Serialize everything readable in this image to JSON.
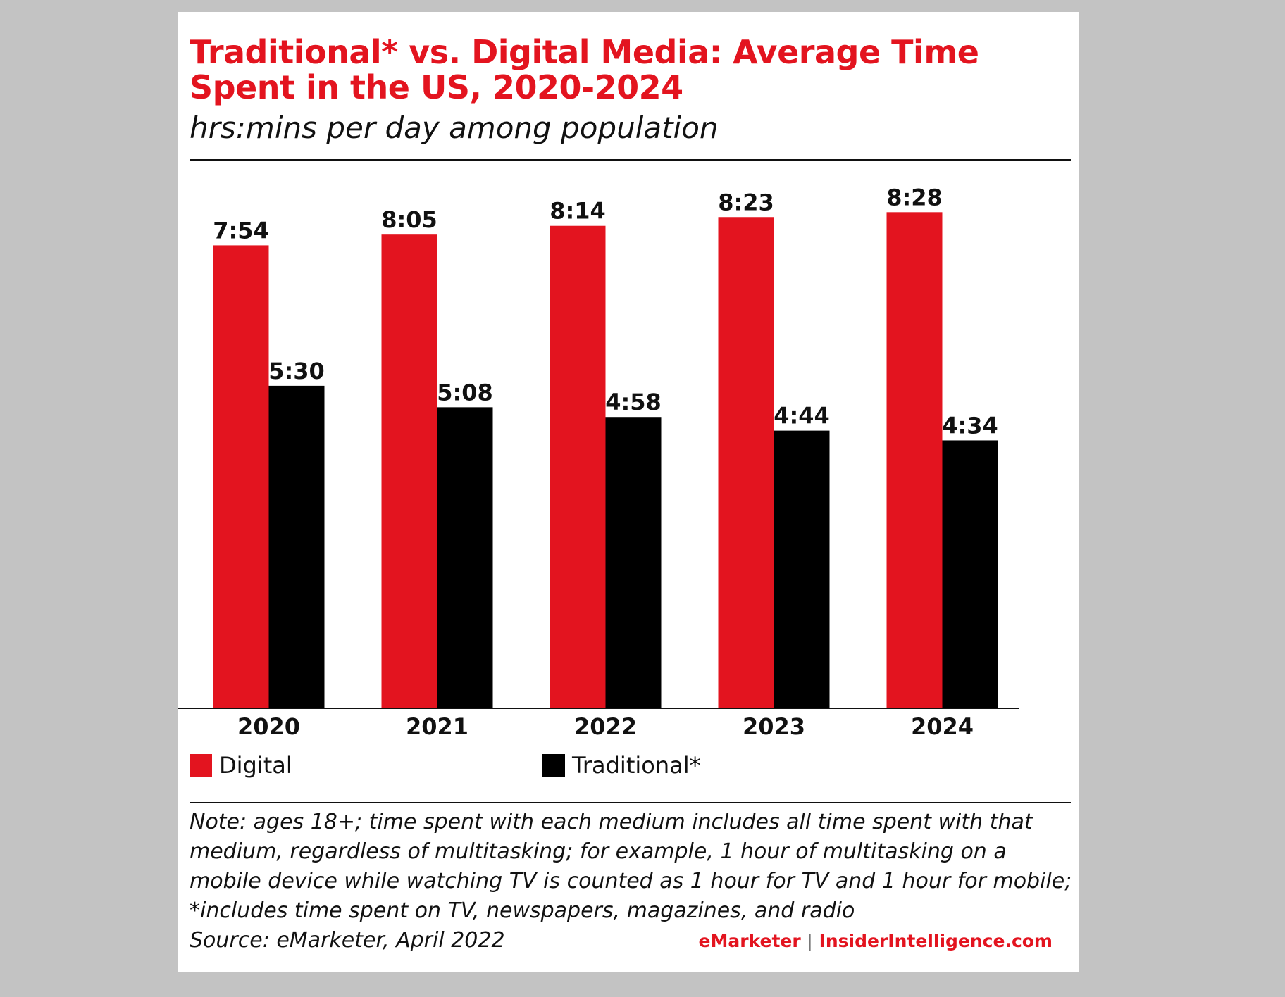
{
  "header": {
    "title": "Traditional* vs. Digital Media: Average Time Spent in the US, 2020-2024",
    "subtitle": "hrs:mins per day among population"
  },
  "footer": {
    "note": "Note: ages 18+; time spent with each medium includes all time spent with that medium, regardless of multitasking; for example, 1 hour of multitasking on a mobile device while watching TV is counted as 1 hour for TV and 1 hour for mobile; *includes time spent on TV, newspapers, magazines, and radio",
    "source": "Source: eMarketer, April 2022",
    "brand_primary": "eMarketer",
    "brand_separator": "|",
    "brand_secondary": "InsiderIntelligence.com"
  },
  "colors": {
    "digital": "#e3141f",
    "traditional": "#000000"
  },
  "chart_data": {
    "type": "bar",
    "title": "Traditional* vs. Digital Media: Average Time Spent in the US, 2020-2024",
    "subtitle": "hrs:mins per day among population",
    "categories": [
      "2020",
      "2021",
      "2022",
      "2023",
      "2024"
    ],
    "series": [
      {
        "name": "Digital",
        "values": [
          474,
          485,
          494,
          503,
          508
        ],
        "labels": [
          "7:54",
          "8:05",
          "8:14",
          "8:23",
          "8:28"
        ]
      },
      {
        "name": "Traditional*",
        "values": [
          330,
          308,
          298,
          284,
          274
        ],
        "labels": [
          "5:30",
          "5:08",
          "4:58",
          "4:44",
          "4:34"
        ]
      }
    ],
    "unit": "minutes per day",
    "ylim": [
      0,
      540
    ],
    "grid": false,
    "legend": "bottom-left"
  }
}
